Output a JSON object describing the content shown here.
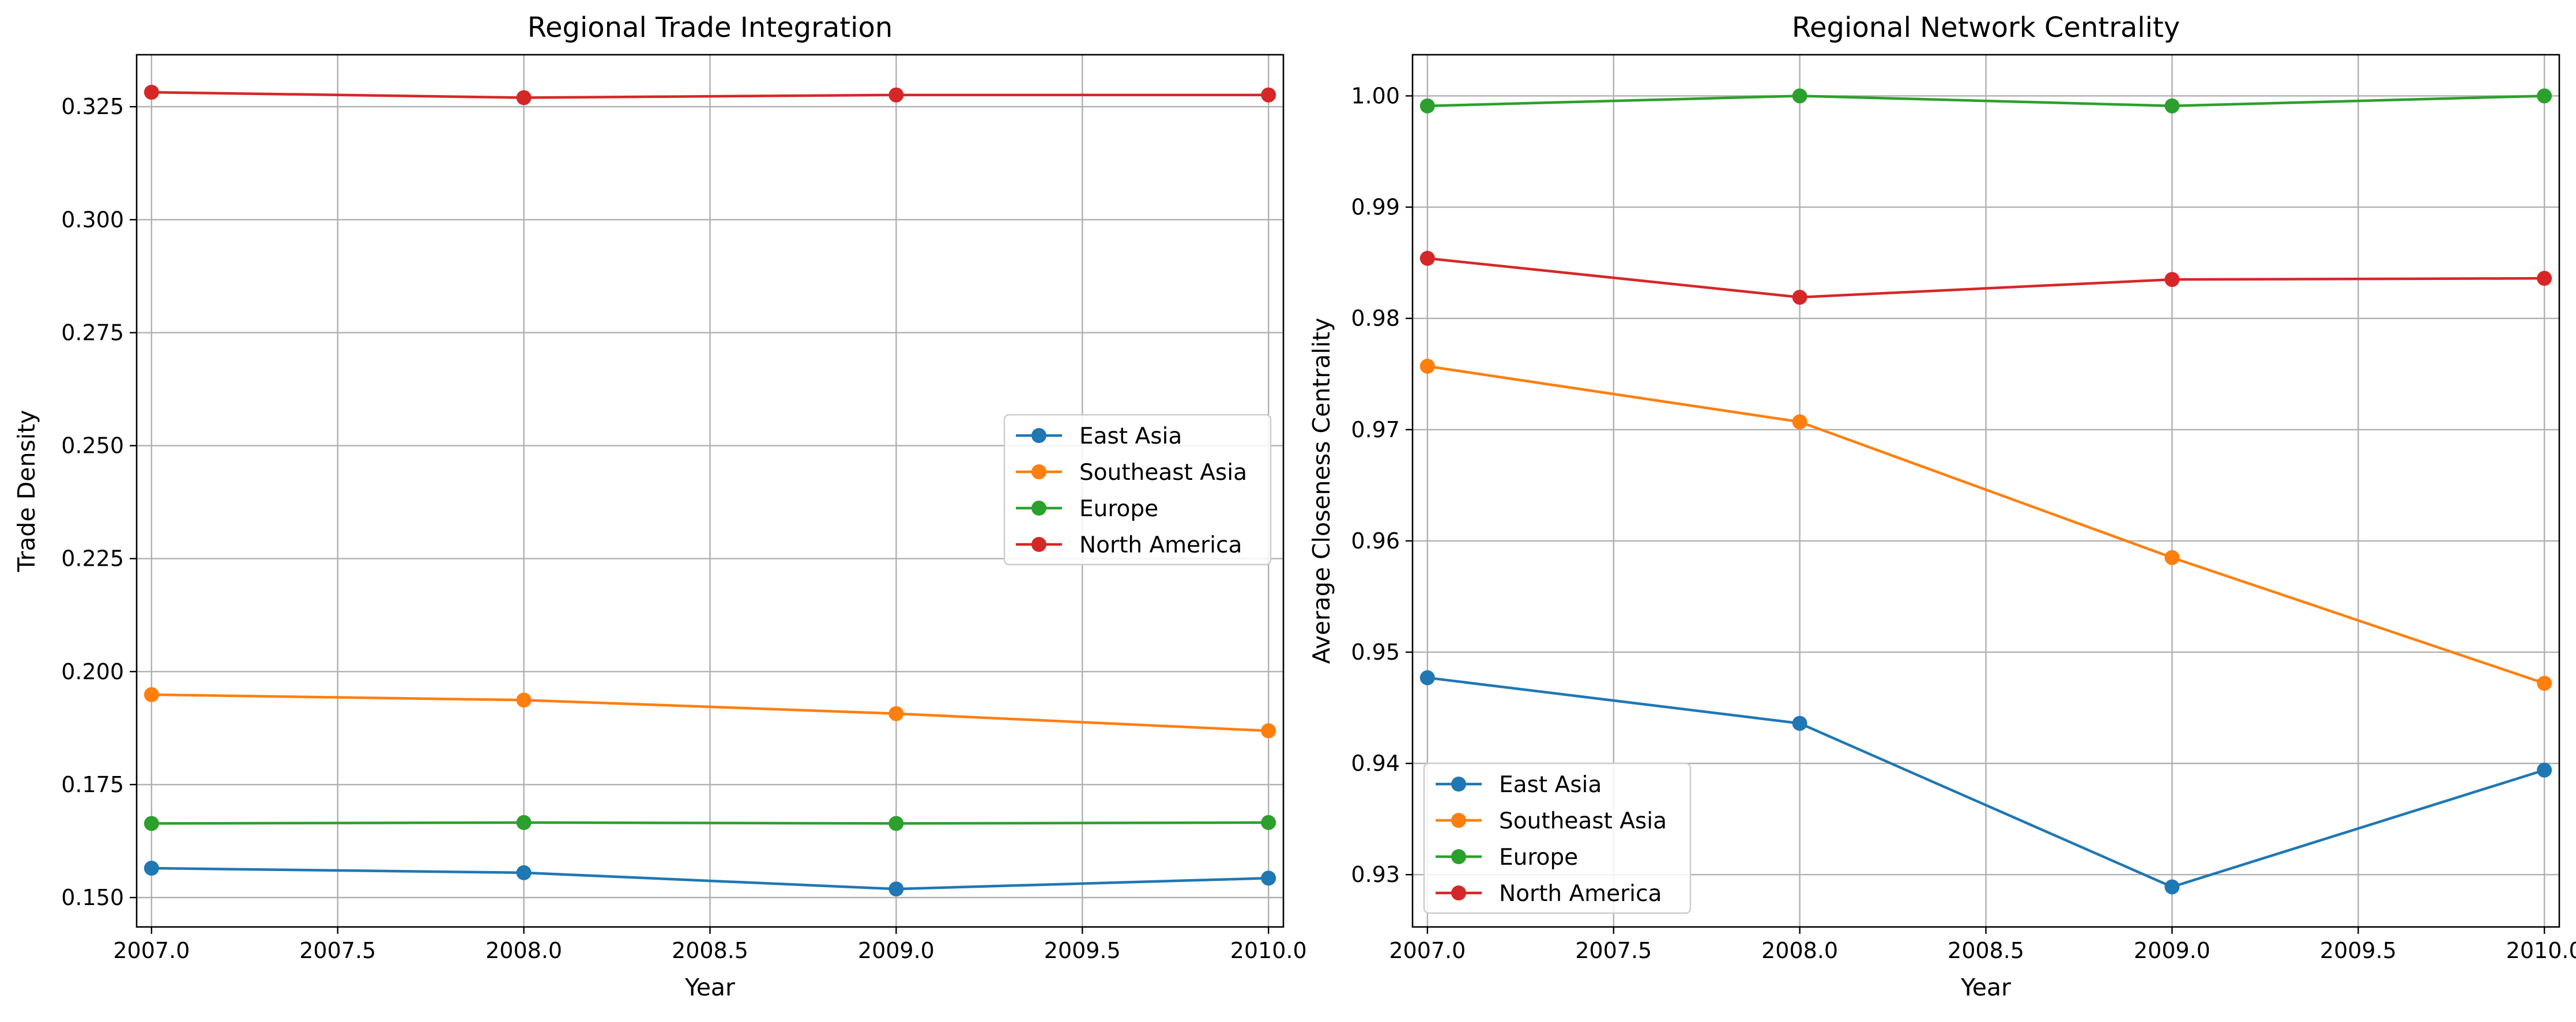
{
  "chart_data": [
    {
      "type": "line",
      "title": "Regional Trade Integration",
      "xlabel": "Year",
      "ylabel": "Trade Density",
      "x": [
        2007,
        2008,
        2009,
        2010
      ],
      "xlim": [
        2006.96,
        2010.04
      ],
      "ylim": [
        0.1435,
        0.3365
      ],
      "xticks": [
        2007.0,
        2007.5,
        2008.0,
        2008.5,
        2009.0,
        2009.5,
        2010.0
      ],
      "xtick_labels": [
        "2007.0",
        "2007.5",
        "2008.0",
        "2008.5",
        "2009.0",
        "2009.5",
        "2010.0"
      ],
      "yticks": [
        0.15,
        0.175,
        0.2,
        0.225,
        0.25,
        0.275,
        0.3,
        0.325
      ],
      "ytick_labels": [
        "0.150",
        "0.175",
        "0.200",
        "0.225",
        "0.250",
        "0.275",
        "0.300",
        "0.325"
      ],
      "grid": true,
      "legend_position": "center-right",
      "series": [
        {
          "name": "East Asia",
          "color": "#1f77b4",
          "values": [
            0.1565,
            0.1555,
            0.1519,
            0.1543
          ]
        },
        {
          "name": "Southeast Asia",
          "color": "#ff7f0e",
          "values": [
            0.1949,
            0.1937,
            0.1907,
            0.1869
          ]
        },
        {
          "name": "Europe",
          "color": "#2ca02c",
          "values": [
            0.1664,
            0.1666,
            0.1664,
            0.1666
          ]
        },
        {
          "name": "North America",
          "color": "#d62728",
          "values": [
            0.3282,
            0.327,
            0.3276,
            0.3276
          ]
        }
      ]
    },
    {
      "type": "line",
      "title": "Regional Network Centrality",
      "xlabel": "Year",
      "ylabel": "Average Closeness Centrality",
      "x": [
        2007,
        2008,
        2009,
        2010
      ],
      "xlim": [
        2006.96,
        2010.04
      ],
      "ylim": [
        0.9253,
        1.0037
      ],
      "xticks": [
        2007.0,
        2007.5,
        2008.0,
        2008.5,
        2009.0,
        2009.5,
        2010.0
      ],
      "xtick_labels": [
        "2007.0",
        "2007.5",
        "2008.0",
        "2008.5",
        "2009.0",
        "2009.5",
        "2010.0"
      ],
      "yticks": [
        0.93,
        0.94,
        0.95,
        0.96,
        0.97,
        0.98,
        0.99,
        1.0
      ],
      "ytick_labels": [
        "0.93",
        "0.94",
        "0.95",
        "0.96",
        "0.97",
        "0.98",
        "0.99",
        "1.00"
      ],
      "grid": true,
      "legend_position": "lower-left",
      "series": [
        {
          "name": "East Asia",
          "color": "#1f77b4",
          "values": [
            0.9477,
            0.9436,
            0.9289,
            0.9394
          ]
        },
        {
          "name": "Southeast Asia",
          "color": "#ff7f0e",
          "values": [
            0.9757,
            0.9707,
            0.9585,
            0.9472
          ]
        },
        {
          "name": "Europe",
          "color": "#2ca02c",
          "values": [
            0.9991,
            1.0,
            0.9991,
            1.0
          ]
        },
        {
          "name": "North America",
          "color": "#d62728",
          "values": [
            0.9854,
            0.9819,
            0.9835,
            0.9836
          ]
        }
      ]
    }
  ]
}
